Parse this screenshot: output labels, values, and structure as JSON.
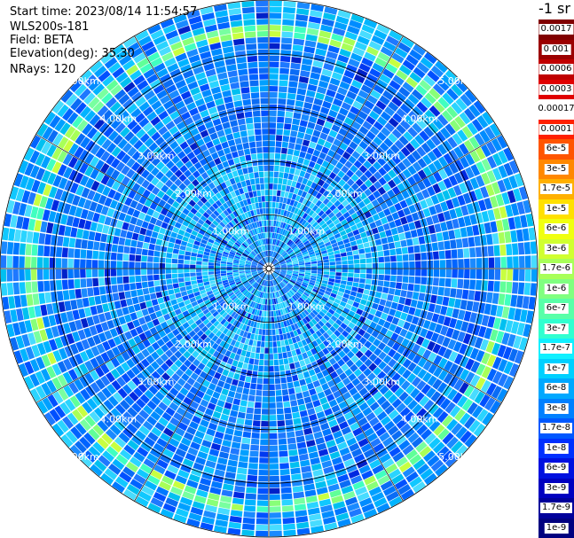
{
  "info": {
    "start_time": "Start time: 2023/08/14 11:54:57",
    "instrument": "WLS200s-181",
    "field": "Field: BETA",
    "elevation": "Elevation(deg): 35.30",
    "nrays": "NRays: 120"
  },
  "colorbar": {
    "title": "-1 sr",
    "labels": [
      "0.0017",
      "0.001",
      "0.0006",
      "0.0003",
      "0.00017",
      "0.0001",
      "6e-5",
      "3e-5",
      "1.7e-5",
      "1e-5",
      "6e-6",
      "3e-6",
      "1.7e-6",
      "1e-6",
      "6e-7",
      "3e-7",
      "1.7e-7",
      "1e-7",
      "6e-8",
      "3e-8",
      "1.7e-8",
      "1e-8",
      "6e-9",
      "3e-9",
      "1.7e-9",
      "1e-9"
    ],
    "colors": [
      "#800000",
      "#9b0000",
      "#c00000",
      "#e00000",
      "#ffffff",
      "#ff2000",
      "#ff5500",
      "#ff8800",
      "#ffb000",
      "#ffe000",
      "#f0ff10",
      "#d0ff30",
      "#a8ff58",
      "#80ff80",
      "#58ffa8",
      "#30ffd0",
      "#10f0ff",
      "#00d0ff",
      "#00a8ff",
      "#0080ff",
      "#0058ff",
      "#0030ff",
      "#0010e0",
      "#0000c0",
      "#00009b",
      "#000080"
    ]
  },
  "chart_data": {
    "type": "heatmap",
    "projection": "polar PPI scan",
    "rays": 120,
    "range_max_km": 5.0,
    "range_rings_km": [
      1.0,
      2.0,
      3.0,
      4.0,
      5.0
    ],
    "ring_labels": [
      "1.00km",
      "2.00km",
      "3.00km",
      "4.00km",
      "5.00km"
    ],
    "field": "BETA",
    "elevation_deg": 35.3,
    "colorscale": "log10 jet, 1e-9 to 0.0017 sr^-1",
    "dominant_level": "approx 1e-8 to 3e-8",
    "features": [
      {
        "description": "enhanced backscatter annulus",
        "range_km": [
          4.3,
          4.55
        ],
        "level": "approx 1e-7 to 3e-7"
      },
      {
        "description": "lighter inner zone",
        "range_km": [
          0.3,
          2.1
        ],
        "level": "approx 3e-8 to 1e-7"
      }
    ]
  }
}
